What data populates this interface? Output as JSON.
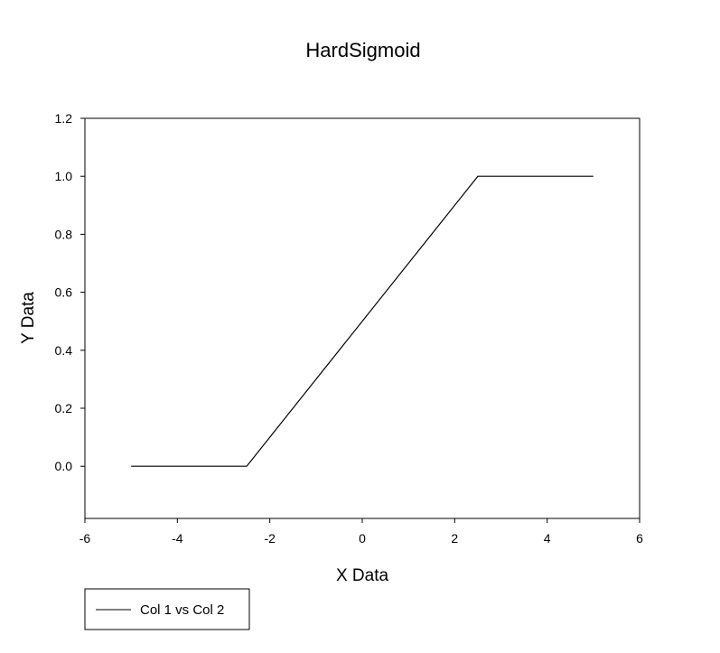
{
  "chart_data": {
    "type": "line",
    "title": "HardSigmoid",
    "xlabel": "X Data",
    "ylabel": "Y Data",
    "xlim": [
      -6,
      6
    ],
    "ylim": [
      -0.18,
      1.2
    ],
    "xticks": [
      -6,
      -4,
      -2,
      0,
      2,
      4,
      6
    ],
    "xtick_labels": [
      "-6",
      "-4",
      "-2",
      "0",
      "2",
      "4",
      "6"
    ],
    "yticks": [
      0.0,
      0.2,
      0.4,
      0.6,
      0.8,
      1.0,
      1.2
    ],
    "ytick_labels": [
      "0.0",
      "0.2",
      "0.4",
      "0.6",
      "0.8",
      "1.0",
      "1.2"
    ],
    "grid": false,
    "legend_position": "bottom-left",
    "series": [
      {
        "name": "Col 1 vs Col 2",
        "color": "#000000",
        "x": [
          -5,
          -2.5,
          2.5,
          5
        ],
        "y": [
          0,
          0,
          1,
          1
        ]
      }
    ]
  }
}
